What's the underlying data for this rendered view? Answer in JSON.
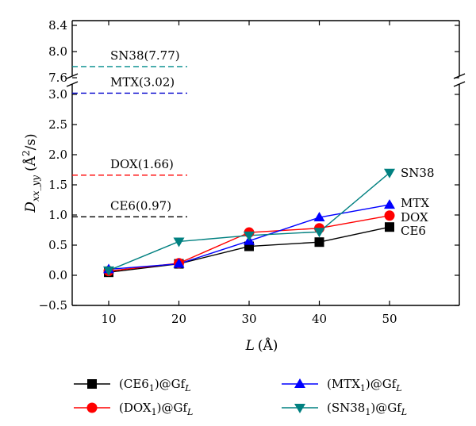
{
  "chart_data": {
    "type": "line",
    "xlabel_main": "L",
    "xlabel_unit": "(Å)",
    "ylabel": "D",
    "ylabel_sub": "xx_yy",
    "ylabel_unit_a": "(Å",
    "ylabel_unit_b": "2",
    "ylabel_unit_c": "/s)",
    "axis_break": true,
    "x": [
      10,
      20,
      30,
      40,
      50
    ],
    "xlim": [
      5,
      55
    ],
    "xticks": [
      "10",
      "20",
      "30",
      "40",
      "50"
    ],
    "ylim_lower": [
      -0.5,
      3.1
    ],
    "ylim_upper": [
      7.5,
      8.4
    ],
    "yticks_lower": [
      "−0.5",
      "0.0",
      "0.5",
      "1.0",
      "1.5",
      "2.0",
      "2.5",
      "3.0"
    ],
    "yticks_upper": [
      "7.6",
      "8.0",
      "8.4"
    ],
    "grid": false,
    "legend_position": "bottom",
    "series": [
      {
        "name": "(CE6",
        "sub": "1",
        "suffix": ")@Gf",
        "suffix_sub": "L",
        "end_label": "CE6",
        "color": "#000000",
        "marker": "square",
        "values": [
          0.05,
          0.19,
          0.48,
          0.55,
          0.8
        ]
      },
      {
        "name": "(DOX",
        "sub": "1",
        "suffix": ")@Gf",
        "suffix_sub": "L",
        "end_label": "DOX",
        "color": "#ff0000",
        "marker": "circle",
        "values": [
          0.07,
          0.2,
          0.71,
          0.78,
          0.99
        ]
      },
      {
        "name": "(MTX",
        "sub": "1",
        "suffix": ")@Gf",
        "suffix_sub": "L",
        "end_label": "MTX",
        "color": "#0000ff",
        "marker": "triangle-up",
        "values": [
          0.1,
          0.19,
          0.57,
          0.96,
          1.17
        ]
      },
      {
        "name": "(SN38",
        "sub": "1",
        "suffix": ")@Gf",
        "suffix_sub": "L",
        "end_label": "SN38",
        "color": "#008080",
        "marker": "triangle-down",
        "values": [
          0.08,
          0.56,
          0.66,
          0.72,
          1.7
        ]
      }
    ],
    "reference_lines": [
      {
        "label": "SN38(7.77)",
        "value": 7.77,
        "color": "#008b8b"
      },
      {
        "label": "MTX(3.02)",
        "value": 3.02,
        "color": "#0000cd"
      },
      {
        "label": "DOX(1.66)",
        "value": 1.66,
        "color": "#ff0000"
      },
      {
        "label": "CE6(0.97)",
        "value": 0.97,
        "color": "#000000"
      }
    ]
  }
}
